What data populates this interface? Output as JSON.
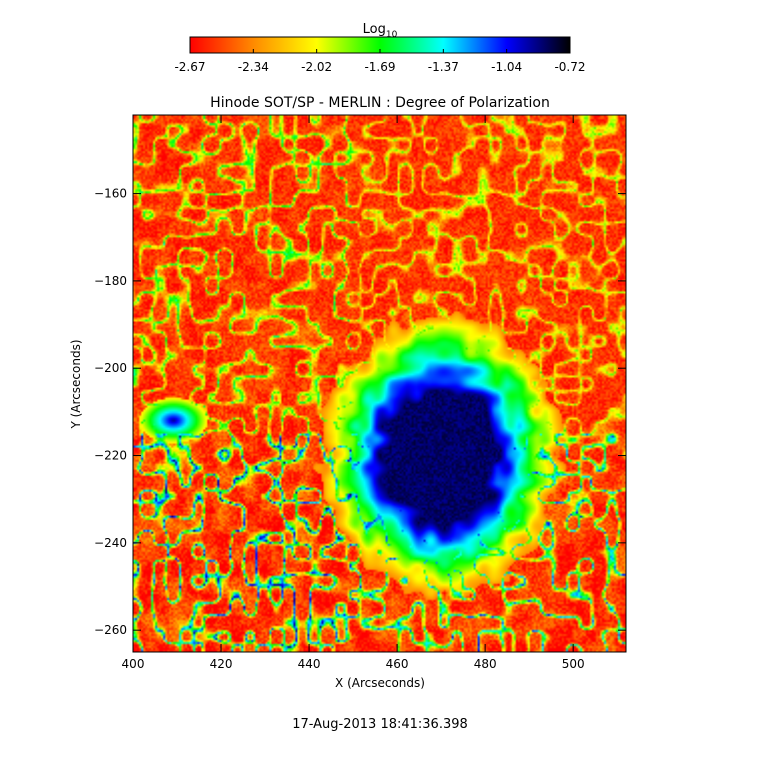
{
  "chart_data": {
    "type": "heatmap",
    "title": "Hinode SOT/SP - MERLIN : Degree of Polarization",
    "xlabel": "X (Arcseconds)",
    "ylabel": "Y (Arcseconds)",
    "xlim": [
      400,
      512
    ],
    "ylim": [
      -265,
      -142
    ],
    "x_ticks": [
      400,
      420,
      440,
      460,
      480,
      500
    ],
    "y_ticks": [
      -160,
      -180,
      -200,
      -220,
      -240,
      -260
    ],
    "colorbar": {
      "label_base": "Log",
      "label_sub": "10",
      "range": [
        -2.67,
        -0.72
      ],
      "ticks": [
        "-2.67",
        "-2.34",
        "-2.02",
        "-1.69",
        "-1.37",
        "-1.04",
        "-0.72"
      ],
      "colors": [
        "#ff0000",
        "#ff8a00",
        "#ffff00",
        "#00ff00",
        "#00ffff",
        "#0000ff",
        "#000000"
      ]
    },
    "features": [
      {
        "name": "sunspot",
        "center": [
          470,
          -220
        ],
        "radius_arcsec": [
          17,
          20
        ],
        "value": -0.85
      },
      {
        "name": "pore",
        "center": [
          409,
          -212
        ],
        "radius_arcsec": [
          6,
          4
        ],
        "value": -0.9
      }
    ],
    "background_value": -2.55,
    "timestamp": "17-Aug-2013 18:41:36.398"
  }
}
